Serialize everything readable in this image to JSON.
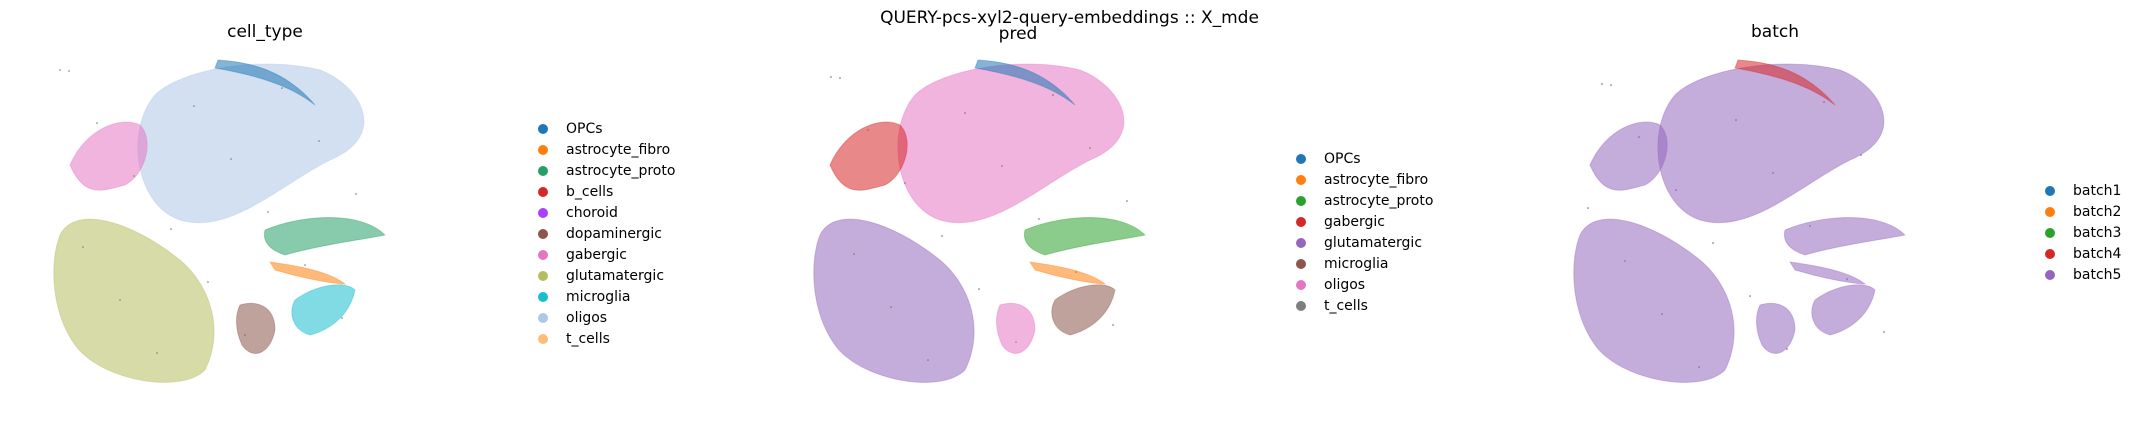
{
  "figure": {
    "suptitle": "QUERY-pcs-xyl2-query-embeddings :: X_mde"
  },
  "chart_data": [
    {
      "type": "scatter",
      "title": "cell_type",
      "xlabel": "",
      "ylabel": "",
      "grid": false,
      "axes_visible": false,
      "legend_position": "right",
      "series": [
        {
          "name": "OPCs",
          "color": "#1f77b4"
        },
        {
          "name": "astrocyte_fibro",
          "color": "#ff7f0e"
        },
        {
          "name": "astrocyte_proto",
          "color": "#279e68"
        },
        {
          "name": "b_cells",
          "color": "#d62728"
        },
        {
          "name": "choroid",
          "color": "#aa40fc"
        },
        {
          "name": "dopaminergic",
          "color": "#8c564b"
        },
        {
          "name": "gabergic",
          "color": "#e377c2"
        },
        {
          "name": "glutamatergic",
          "color": "#b5bd61"
        },
        {
          "name": "microglia",
          "color": "#17becf"
        },
        {
          "name": "oligos",
          "color": "#aec7e8"
        },
        {
          "name": "t_cells",
          "color": "#ffbb78"
        }
      ],
      "clusters": [
        {
          "region": "large-central",
          "series": "oligos"
        },
        {
          "region": "top-arc",
          "series": "OPCs"
        },
        {
          "region": "left-bottom",
          "series": "glutamatergic"
        },
        {
          "region": "left-top",
          "series": "gabergic"
        },
        {
          "region": "right-arc",
          "series": "astrocyte_proto"
        },
        {
          "region": "right-lower-arc",
          "series": "astrocyte_fibro"
        },
        {
          "region": "right-bottom",
          "series": "microglia"
        },
        {
          "region": "striped",
          "series": "dopaminergic"
        }
      ]
    },
    {
      "type": "scatter",
      "title": "pred",
      "xlabel": "",
      "ylabel": "",
      "grid": false,
      "axes_visible": false,
      "legend_position": "right",
      "series": [
        {
          "name": "OPCs",
          "color": "#1f77b4"
        },
        {
          "name": "astrocyte_fibro",
          "color": "#ff7f0e"
        },
        {
          "name": "astrocyte_proto",
          "color": "#2ca02c"
        },
        {
          "name": "gabergic",
          "color": "#d62728"
        },
        {
          "name": "glutamatergic",
          "color": "#9467bd"
        },
        {
          "name": "microglia",
          "color": "#8c564b"
        },
        {
          "name": "oligos",
          "color": "#e377c2"
        },
        {
          "name": "t_cells",
          "color": "#7f7f7f"
        }
      ],
      "clusters": [
        {
          "region": "large-central",
          "series": "oligos"
        },
        {
          "region": "top-arc",
          "series": "OPCs"
        },
        {
          "region": "left-bottom",
          "series": "glutamatergic"
        },
        {
          "region": "left-top",
          "series": "gabergic"
        },
        {
          "region": "right-arc",
          "series": "astrocyte_proto"
        },
        {
          "region": "right-lower-arc",
          "series": "astrocyte_fibro"
        },
        {
          "region": "right-bottom",
          "series": "microglia"
        },
        {
          "region": "striped",
          "series": "oligos"
        }
      ]
    },
    {
      "type": "scatter",
      "title": "batch",
      "xlabel": "",
      "ylabel": "",
      "grid": false,
      "axes_visible": false,
      "legend_position": "right",
      "series": [
        {
          "name": "batch1",
          "color": "#1f77b4"
        },
        {
          "name": "batch2",
          "color": "#ff7f0e"
        },
        {
          "name": "batch3",
          "color": "#2ca02c"
        },
        {
          "name": "batch4",
          "color": "#d62728"
        },
        {
          "name": "batch5",
          "color": "#9467bd"
        }
      ],
      "clusters": [
        {
          "region": "large-central",
          "series": "batch5"
        },
        {
          "region": "top-arc",
          "series": "batch4"
        },
        {
          "region": "left-bottom",
          "series": "batch5"
        },
        {
          "region": "left-top",
          "series": "batch5"
        },
        {
          "region": "right-arc",
          "series": "batch5"
        },
        {
          "region": "right-lower-arc",
          "series": "batch5"
        },
        {
          "region": "right-bottom",
          "series": "batch5"
        },
        {
          "region": "striped",
          "series": "batch5"
        }
      ]
    }
  ]
}
